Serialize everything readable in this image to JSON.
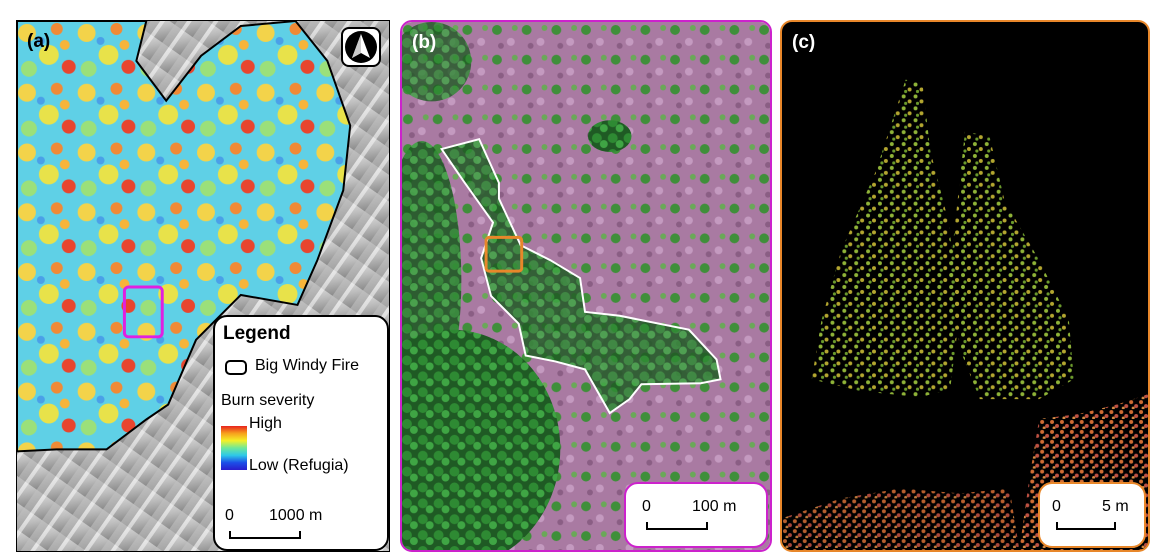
{
  "panels": {
    "a": {
      "label": "(a)",
      "legend": {
        "title": "Legend",
        "fire_label": "Big Windy Fire",
        "burn_title": "Burn severity",
        "high_label": "High",
        "low_label": "Low (Refugia)"
      },
      "scalebar": {
        "start": "0",
        "end": "1000 m"
      },
      "north_icon": "north-arrow-icon",
      "highlight_color": "#e020e0"
    },
    "b": {
      "label": "(b)",
      "scalebar": {
        "start": "0",
        "end": "100 m"
      },
      "frame_color": "#cc22cc",
      "refugia_outline_color": "#ffffff",
      "highlight_color": "#e8872a"
    },
    "c": {
      "label": "(c)",
      "scalebar": {
        "start": "0",
        "end": "5 m"
      },
      "frame_color": "#e8872a"
    }
  }
}
